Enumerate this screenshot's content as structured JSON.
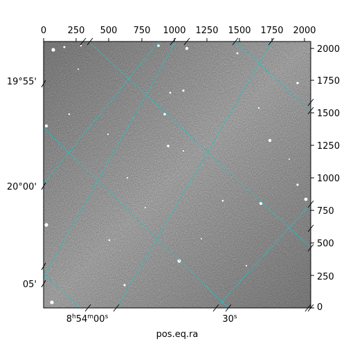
{
  "image": {
    "kind": "astronomical-image-with-wcs-grid",
    "background": "grayscale-noise",
    "grid_color": "#22c4c4"
  },
  "axes": {
    "bottom_title": "pos.eq.ra",
    "top_ticks": [
      "0",
      "250",
      "500",
      "750",
      "1000",
      "1250",
      "1500",
      "1750",
      "2000"
    ],
    "right_ticks": [
      "0",
      "250",
      "500",
      "750",
      "1000",
      "1250",
      "1500",
      "1750",
      "2000"
    ],
    "left_ticks": [
      {
        "deg": "19°55'",
        "min": null
      },
      {
        "deg": "20°00'",
        "min": null
      },
      {
        "deg": null,
        "min": "05'"
      }
    ],
    "bottom_ticks": [
      {
        "h": "8",
        "h_unit": "h",
        "m": "54",
        "m_unit": "m",
        "s": "00",
        "s_unit": "s"
      },
      {
        "s": "30",
        "s_unit": "s"
      }
    ]
  }
}
